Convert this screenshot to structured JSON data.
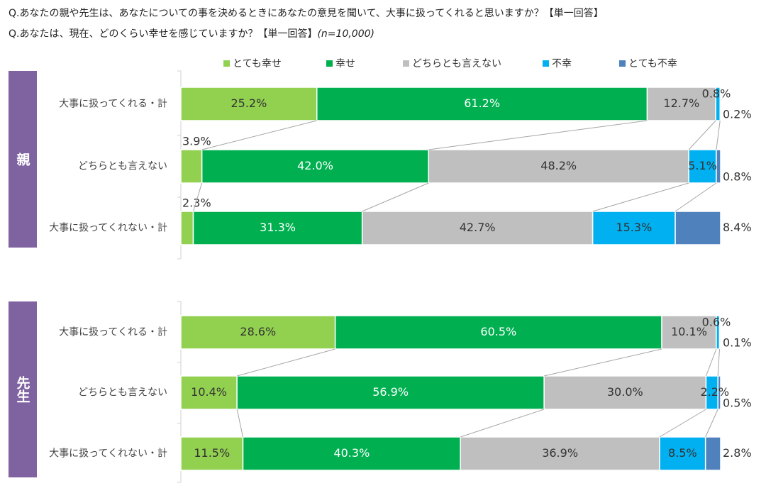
{
  "question1": "Q.あなたの親や先生は、あなたについての事を決めるときにあなたの意見を聞いて、大事に扱ってくれると思いますか？【単一回答】",
  "question2_main": "Q.あなたは、現在、どのくらい幸せを感じていますか？【単一回答】",
  "question2_n": "(n=10,000)",
  "chart_data": {
    "type": "bar",
    "orientation": "horizontal",
    "stacked": true,
    "percent": true,
    "legend_position": "top",
    "categories": [
      "大事に扱ってくれる・計",
      "どちらとも言えない",
      "大事に扱ってくれない・計"
    ],
    "series_names": [
      "とても幸せ",
      "幸せ",
      "どちらとも言えない",
      "不幸",
      "とても不幸"
    ],
    "colors": [
      "#92d050",
      "#00b050",
      "#bfbfbf",
      "#00b0f0",
      "#4f81bd"
    ],
    "groups": [
      {
        "label": "親",
        "rows": [
          {
            "category": "大事に扱ってくれる・計",
            "values": [
              25.2,
              61.2,
              12.7,
              0.8,
              0.2
            ],
            "labels": [
              "25.2%",
              "61.2%",
              "12.7%",
              "0.8%",
              "0.2%"
            ]
          },
          {
            "category": "どちらとも言えない",
            "values": [
              3.9,
              42.0,
              48.2,
              5.1,
              0.8
            ],
            "labels": [
              "3.9%",
              "42.0%",
              "48.2%",
              "5.1%",
              "0.8%"
            ]
          },
          {
            "category": "大事に扱ってくれない・計",
            "values": [
              2.3,
              31.3,
              42.7,
              15.3,
              8.4
            ],
            "labels": [
              "2.3%",
              "31.3%",
              "42.7%",
              "15.3%",
              "8.4%"
            ]
          }
        ]
      },
      {
        "label": "先生",
        "rows": [
          {
            "category": "大事に扱ってくれる・計",
            "values": [
              28.6,
              60.5,
              10.1,
              0.6,
              0.1
            ],
            "labels": [
              "28.6%",
              "60.5%",
              "10.1%",
              "0.6%",
              "0.1%"
            ]
          },
          {
            "category": "どちらとも言えない",
            "values": [
              10.4,
              56.9,
              30.0,
              2.2,
              0.5
            ],
            "labels": [
              "10.4%",
              "56.9%",
              "30.0%",
              "2.2%",
              "0.5%"
            ]
          },
          {
            "category": "大事に扱ってくれない・計",
            "values": [
              11.5,
              40.3,
              36.9,
              8.5,
              2.8
            ],
            "labels": [
              "11.5%",
              "40.3%",
              "36.9%",
              "8.5%",
              "2.8%"
            ]
          }
        ]
      }
    ]
  }
}
